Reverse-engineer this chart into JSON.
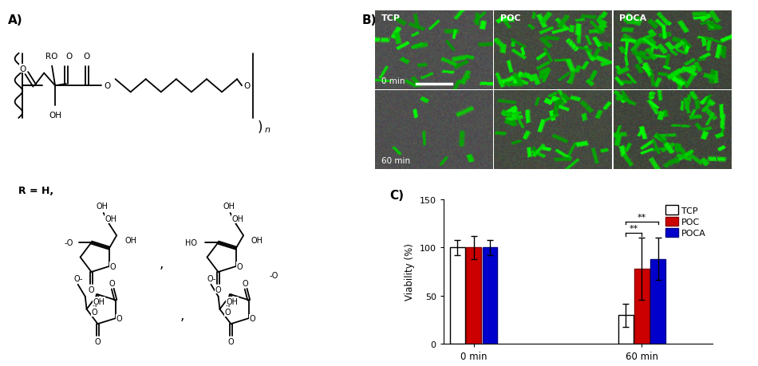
{
  "panel_A_label": "A)",
  "panel_B_label": "B)",
  "panel_C_label": "C)",
  "bar_groups": [
    "0 min",
    "60 min"
  ],
  "bar_series": [
    "TCP",
    "POC",
    "POCA"
  ],
  "bar_values": {
    "0 min": {
      "TCP": 100,
      "POC": 100,
      "POCA": 100
    },
    "60 min": {
      "TCP": 30,
      "POC": 78,
      "POCA": 88
    }
  },
  "bar_errors": {
    "0 min": {
      "TCP": 8,
      "POC": 12,
      "POCA": 8
    },
    "60 min": {
      "TCP": 12,
      "POC": 32,
      "POCA": 22
    }
  },
  "bar_colors": {
    "TCP": "#FFFFFF",
    "POC": "#CC0000",
    "POCA": "#0000CC"
  },
  "bar_edgecolors": {
    "TCP": "#000000",
    "POC": "#880000",
    "POCA": "#000088"
  },
  "ylabel": "Viability (%)",
  "ylim": [
    0,
    150
  ],
  "yticks": [
    0,
    50,
    100,
    150
  ],
  "legend_labels": [
    "TCP",
    "POC",
    "POCA"
  ],
  "legend_colors": [
    "#FFFFFF",
    "#CC0000",
    "#0000CC"
  ],
  "legend_edgecolors": [
    "#000000",
    "#880000",
    "#000088"
  ],
  "microscopy_labels_top": [
    "TCP",
    "POC",
    "POCA"
  ],
  "microscopy_time_labels": [
    "0 min",
    "60 min"
  ],
  "bg_color": "#FFFFFF",
  "bar_width": 0.22,
  "group_positions": [
    1.0,
    3.5
  ],
  "group_offsets": [
    -0.24,
    0.0,
    0.24
  ]
}
